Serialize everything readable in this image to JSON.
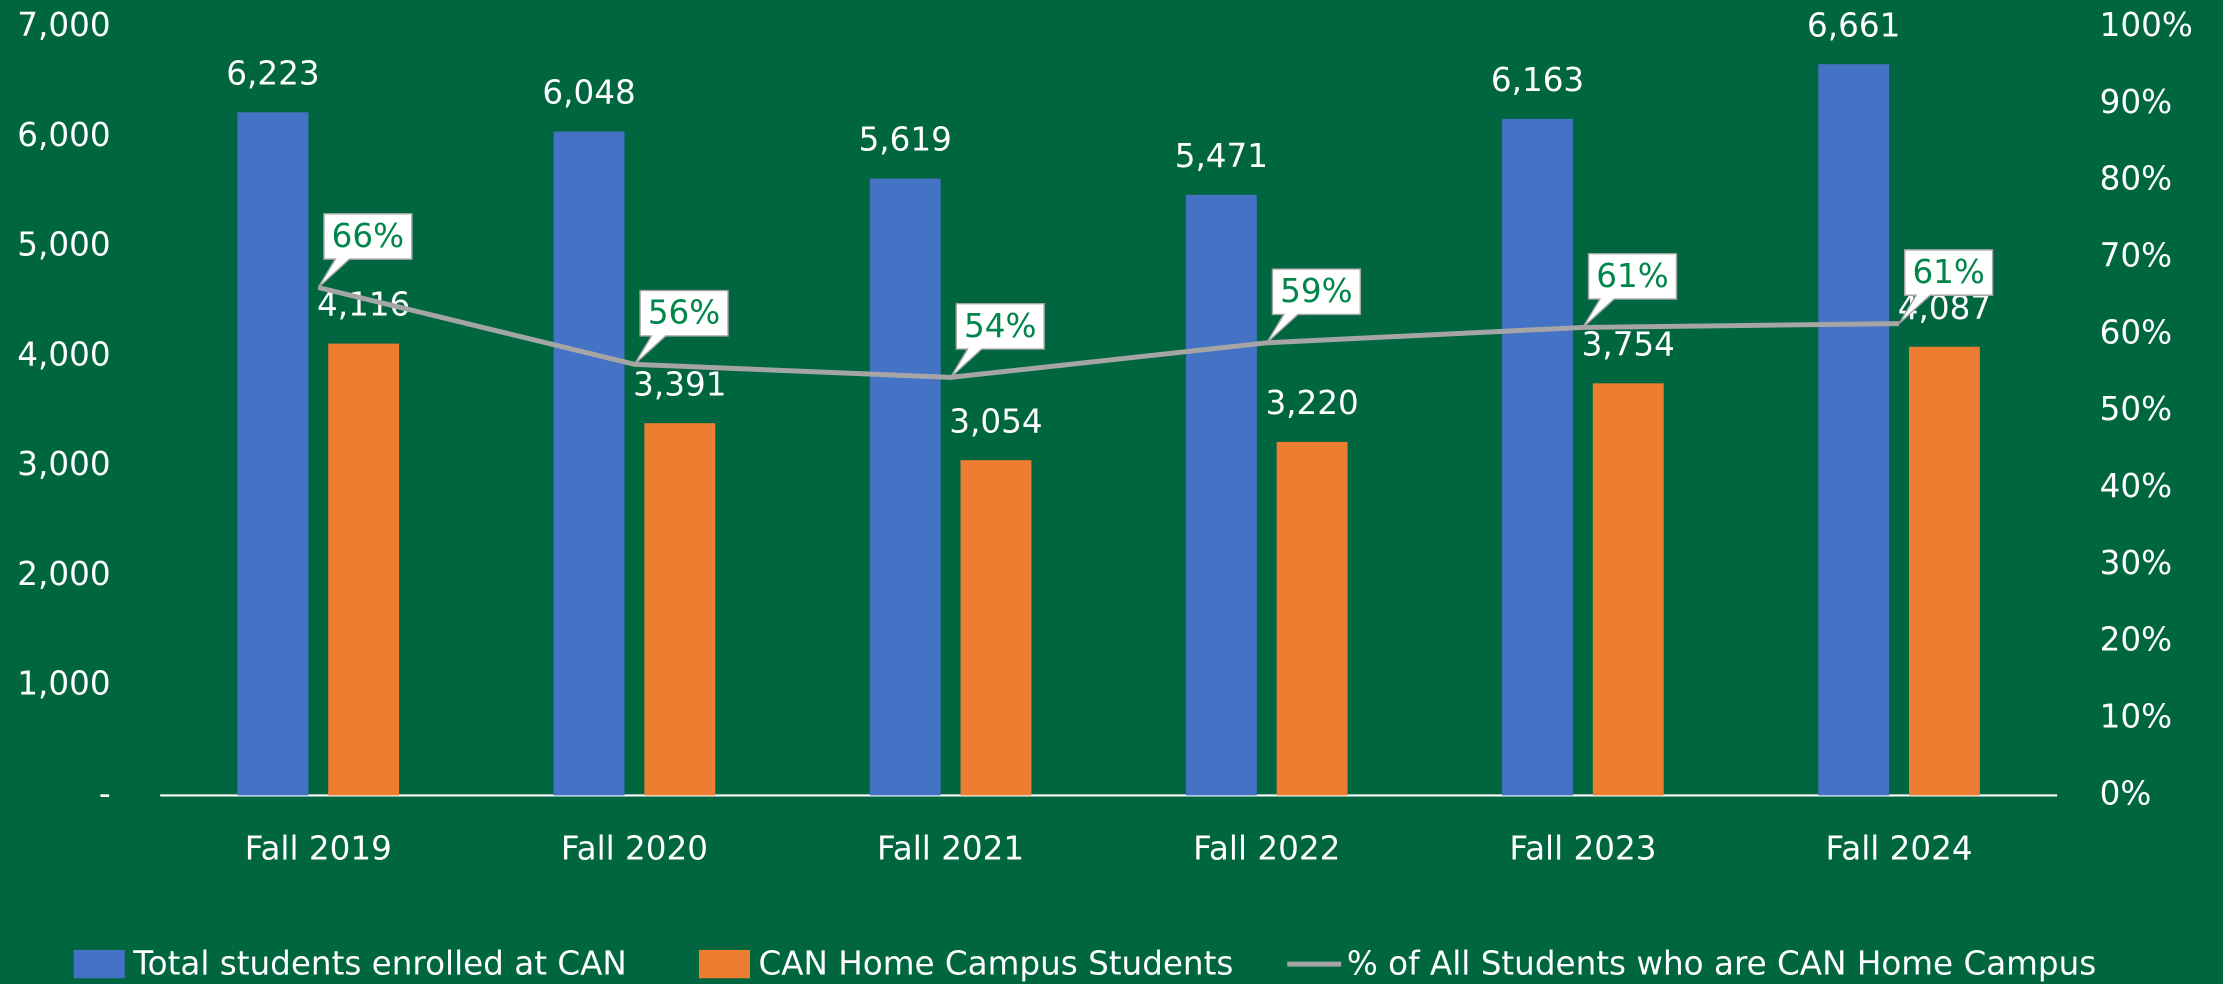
{
  "chart_data": {
    "type": "bar-line",
    "categories": [
      "Fall 2019",
      "Fall 2020",
      "Fall 2021",
      "Fall 2022",
      "Fall 2023",
      "Fall 2024"
    ],
    "series": [
      {
        "name": "Total students enrolled at CAN",
        "color": "#4472c4",
        "type": "bar",
        "values": [
          6223,
          6048,
          5619,
          5471,
          6163,
          6661
        ],
        "value_labels": [
          "6,223",
          "6,048",
          "5,619",
          "5,471",
          "6,163",
          "6,661"
        ]
      },
      {
        "name": "CAN Home Campus Students",
        "color": "#ed7d31",
        "type": "bar",
        "values": [
          4116,
          3391,
          3054,
          3220,
          3754,
          4087
        ],
        "value_labels": [
          "4,116",
          "3,391",
          "3,054",
          "3,220",
          "3,754",
          "4,087"
        ]
      },
      {
        "name": "% of All Students who are CAN Home Campus",
        "color": "#a5a5a5",
        "type": "line",
        "axis": "y2",
        "values": [
          66.1,
          56.1,
          54.4,
          58.9,
          60.9,
          61.4
        ],
        "value_labels": [
          "66%",
          "56%",
          "54%",
          "59%",
          "61%",
          "61%"
        ]
      }
    ],
    "ylim": [
      0,
      7000
    ],
    "yticks": [
      {
        "value": 0,
        "label": "-"
      },
      {
        "value": 1000,
        "label": "1,000"
      },
      {
        "value": 2000,
        "label": "2,000"
      },
      {
        "value": 3000,
        "label": "3,000"
      },
      {
        "value": 4000,
        "label": "4,000"
      },
      {
        "value": 5000,
        "label": "5,000"
      },
      {
        "value": 6000,
        "label": "6,000"
      },
      {
        "value": 7000,
        "label": "7,000"
      }
    ],
    "y2lim": [
      0,
      100
    ],
    "y2ticks": [
      {
        "value": 0,
        "label": "0%"
      },
      {
        "value": 10,
        "label": "10%"
      },
      {
        "value": 20,
        "label": "20%"
      },
      {
        "value": 30,
        "label": "30%"
      },
      {
        "value": 40,
        "label": "40%"
      },
      {
        "value": 50,
        "label": "50%"
      },
      {
        "value": 60,
        "label": "60%"
      },
      {
        "value": 70,
        "label": "70%"
      },
      {
        "value": 80,
        "label": "80%"
      },
      {
        "value": 90,
        "label": "90%"
      },
      {
        "value": 100,
        "label": "100%"
      }
    ],
    "legend": "bottom",
    "background": "#006640"
  }
}
